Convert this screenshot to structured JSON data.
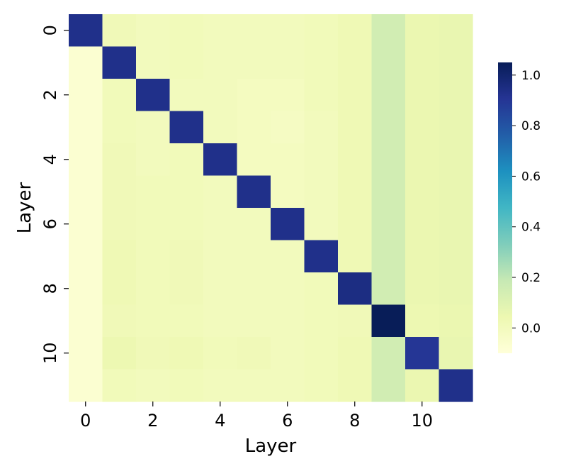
{
  "chart_data": {
    "type": "heatmap",
    "title": "",
    "xlabel": "Layer",
    "ylabel": "Layer",
    "x_categories": [
      "0",
      "1",
      "2",
      "3",
      "4",
      "5",
      "6",
      "7",
      "8",
      "9",
      "10",
      "11"
    ],
    "y_categories": [
      "0",
      "1",
      "2",
      "3",
      "4",
      "5",
      "6",
      "7",
      "8",
      "9",
      "10",
      "11"
    ],
    "x_tick_labels": [
      "0",
      "2",
      "4",
      "6",
      "8",
      "10"
    ],
    "y_tick_labels": [
      "0",
      "2",
      "4",
      "6",
      "8",
      "10"
    ],
    "colormap": "YlGnBu",
    "color_range": [
      -0.1,
      1.05
    ],
    "colorbar_ticks": [
      "0.0",
      "0.2",
      "0.4",
      "0.6",
      "0.8",
      "1.0"
    ],
    "colorbar_tick_values": [
      0.0,
      0.2,
      0.4,
      0.6,
      0.8,
      1.0
    ],
    "values": [
      [
        0.93,
        0.02,
        0.0,
        0.01,
        0.0,
        0.0,
        0.0,
        0.01,
        0.03,
        0.15,
        0.05,
        0.06
      ],
      [
        -0.07,
        0.93,
        0.0,
        0.01,
        0.0,
        0.0,
        0.0,
        0.01,
        0.03,
        0.15,
        0.05,
        0.06
      ],
      [
        -0.07,
        0.01,
        0.93,
        0.0,
        0.0,
        -0.01,
        -0.01,
        0.01,
        0.03,
        0.15,
        0.05,
        0.06
      ],
      [
        -0.07,
        0.01,
        0.0,
        0.93,
        0.0,
        -0.01,
        -0.02,
        0.0,
        0.03,
        0.15,
        0.05,
        0.06
      ],
      [
        -0.07,
        0.02,
        0.0,
        0.01,
        0.93,
        -0.01,
        -0.01,
        0.0,
        0.03,
        0.15,
        0.05,
        0.06
      ],
      [
        -0.07,
        0.02,
        0.01,
        0.01,
        0.0,
        0.93,
        -0.01,
        0.0,
        0.03,
        0.15,
        0.05,
        0.06
      ],
      [
        -0.07,
        0.02,
        0.01,
        0.01,
        0.0,
        0.0,
        0.93,
        0.0,
        0.03,
        0.15,
        0.05,
        0.06
      ],
      [
        -0.07,
        0.03,
        0.01,
        0.02,
        0.0,
        0.0,
        0.0,
        0.93,
        0.03,
        0.15,
        0.05,
        0.06
      ],
      [
        -0.07,
        0.03,
        0.01,
        0.02,
        0.0,
        0.0,
        0.0,
        0.01,
        0.95,
        0.15,
        0.05,
        0.06
      ],
      [
        -0.07,
        0.02,
        0.01,
        0.01,
        0.0,
        0.0,
        0.0,
        0.01,
        0.02,
        1.05,
        0.04,
        0.05
      ],
      [
        -0.07,
        0.04,
        0.02,
        0.03,
        0.01,
        0.02,
        0.0,
        0.01,
        0.03,
        0.15,
        0.9,
        0.06
      ],
      [
        -0.07,
        0.01,
        0.0,
        0.01,
        0.0,
        0.0,
        0.0,
        0.01,
        0.03,
        0.15,
        0.05,
        0.93
      ]
    ]
  }
}
